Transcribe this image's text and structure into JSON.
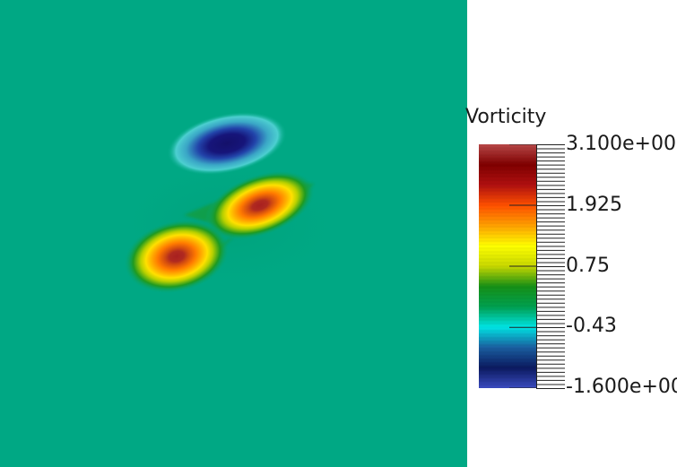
{
  "colormap": {
    "title": "Vorticity",
    "labels": [
      "3.100e+00",
      "1.925",
      "0.75",
      "-0.43",
      "-1.600e+00"
    ],
    "range": [
      -1.6,
      3.1
    ],
    "stops": [
      "#3b4cc0",
      "#0b1a60",
      "#1a5fa0",
      "#00e5e5",
      "#00a050",
      "#169016",
      "#c8d800",
      "#ffff00",
      "#ffa000",
      "#ff5000",
      "#b01010",
      "#800000",
      "#b84848"
    ]
  },
  "colors": {
    "background_field": "#00a884"
  }
}
